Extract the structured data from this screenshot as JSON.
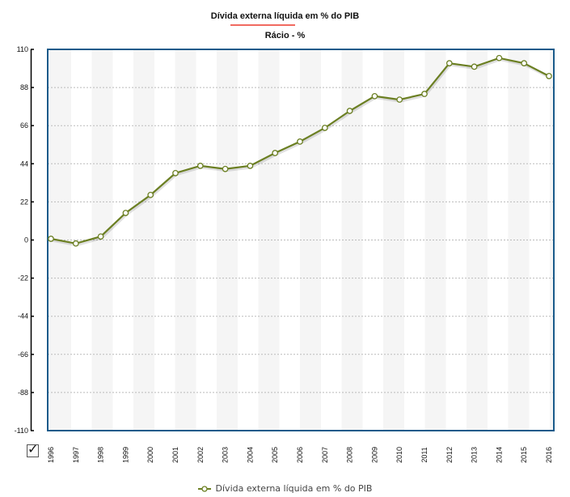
{
  "chart_data": {
    "type": "line",
    "title": "Dívida externa líquida em % do PIB",
    "subtitle": "Rácio - %",
    "xlabel": "",
    "ylabel": "",
    "ylim": [
      -110,
      110
    ],
    "yticks": [
      110,
      88,
      66,
      44,
      22,
      0,
      -22,
      -44,
      -66,
      -88,
      -110
    ],
    "categories": [
      "1996",
      "1997",
      "1998",
      "1999",
      "2000",
      "2001",
      "2002",
      "2003",
      "2004",
      "2005",
      "2006",
      "2007",
      "2008",
      "2009",
      "2010",
      "2011",
      "2012",
      "2013",
      "2014",
      "2015",
      "2016"
    ],
    "series": [
      {
        "name": "Dívida externa líquida em % do PIB",
        "color": "#6b7f22",
        "values": [
          0.7,
          -2,
          2,
          15.6,
          26,
          38.6,
          42.8,
          41,
          42.8,
          50.2,
          56.8,
          64.7,
          74.5,
          83,
          81,
          84.3,
          102,
          100,
          105,
          102,
          94.6
        ]
      }
    ],
    "grid": true,
    "legend": "bottom-center",
    "frame_color": "#1a5a8a"
  }
}
